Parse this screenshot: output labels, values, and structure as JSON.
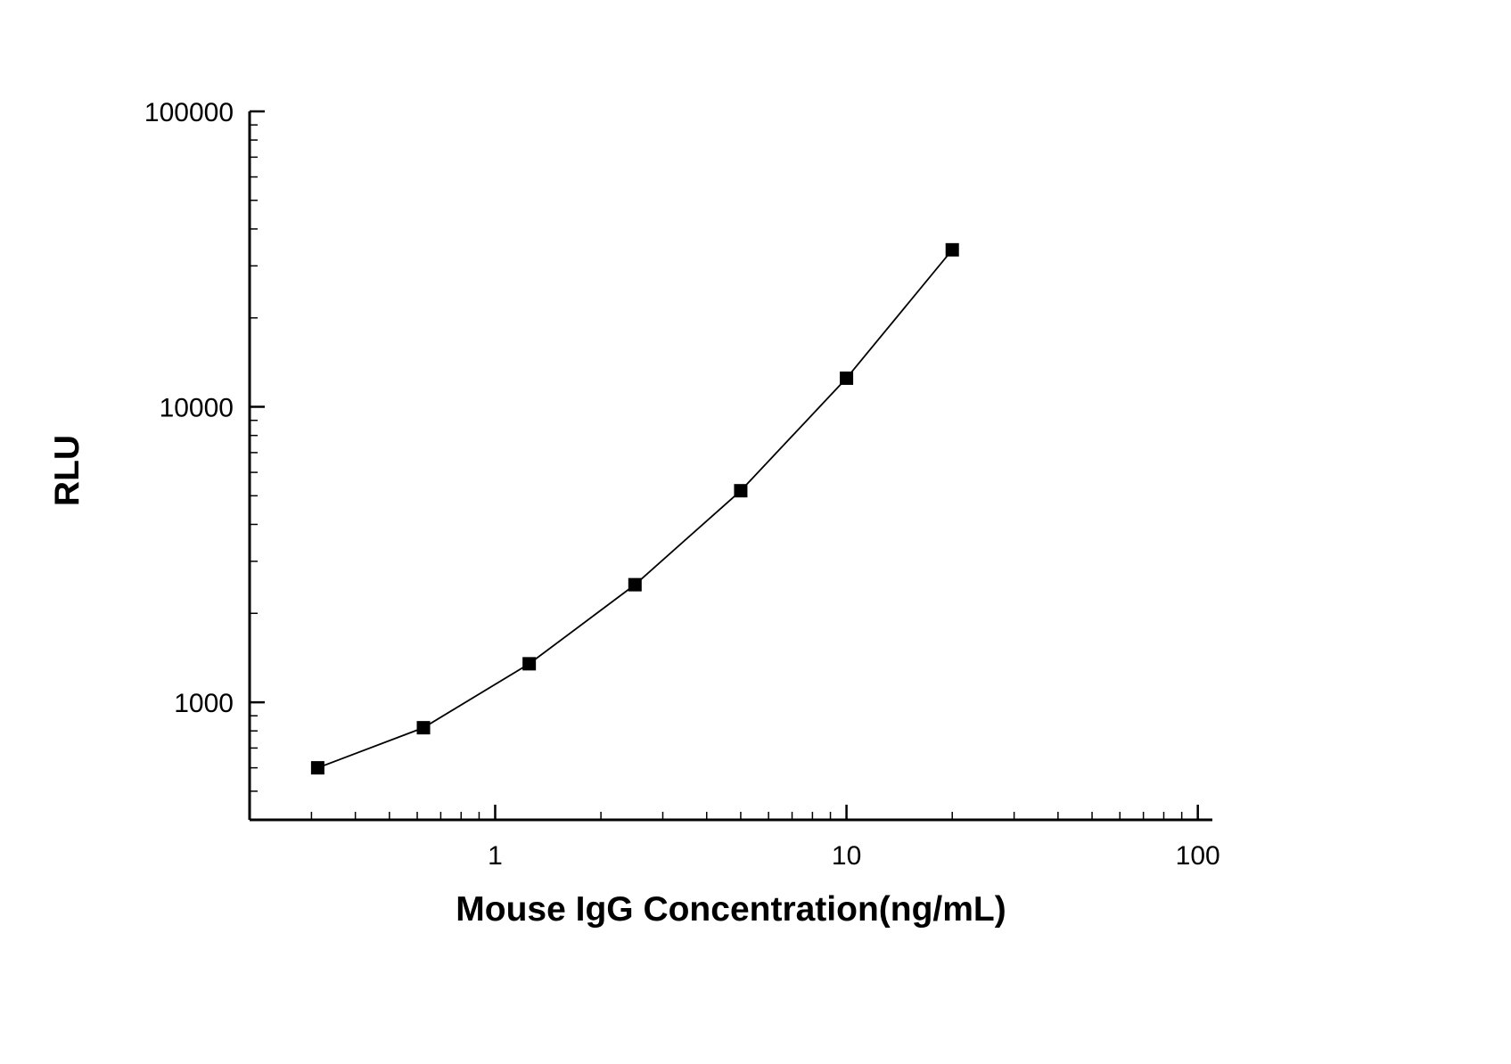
{
  "chart_data": {
    "type": "line",
    "title": "",
    "xlabel": "Mouse IgG Concentration(ng/mL)",
    "ylabel": "RLU",
    "xscale": "log",
    "yscale": "log",
    "xlim": [
      0.2,
      110
    ],
    "ylim": [
      400,
      100000
    ],
    "x": [
      0.3125,
      0.625,
      1.25,
      2.5,
      5,
      10,
      20
    ],
    "y": [
      600,
      820,
      1350,
      2500,
      5200,
      12500,
      34000
    ],
    "x_ticks": [
      1,
      10,
      100
    ],
    "x_tick_labels": [
      "1",
      "10",
      "100"
    ],
    "y_ticks": [
      1000,
      10000,
      100000
    ],
    "y_tick_labels": [
      "1000",
      "10000",
      "100000"
    ],
    "marker": "filled-square",
    "line_color": "#000000",
    "marker_color": "#000000",
    "axis_color": "#000000",
    "background_color": "#ffffff",
    "grid": false,
    "legend": "none"
  }
}
